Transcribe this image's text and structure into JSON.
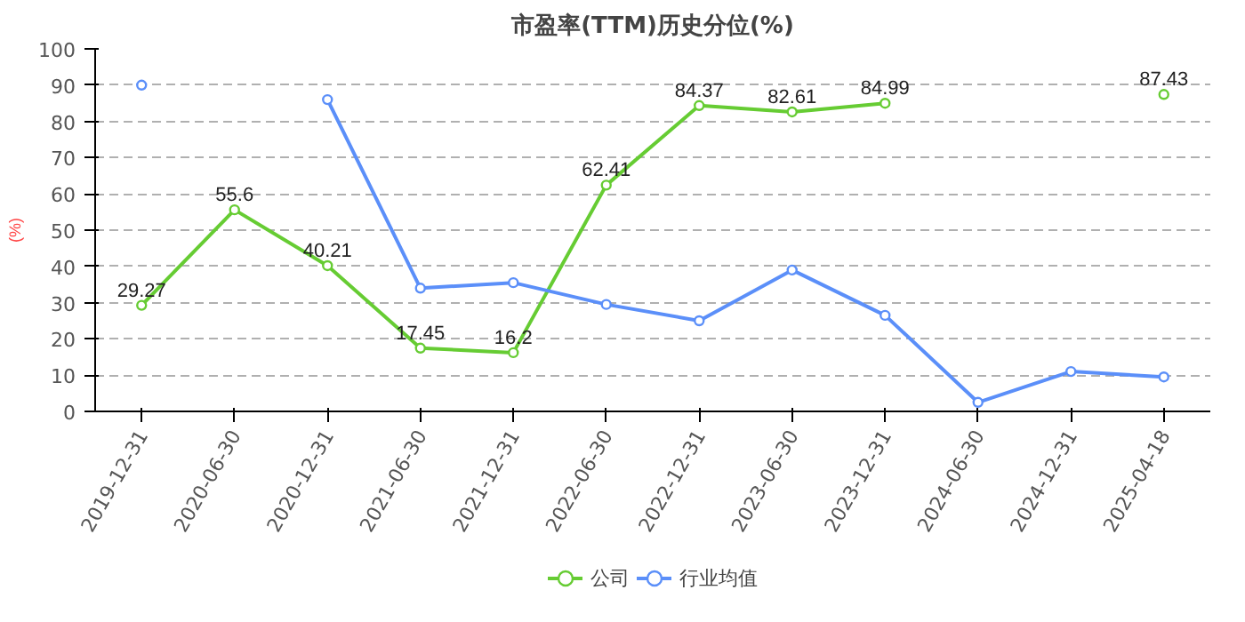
{
  "chart_data": {
    "type": "line",
    "title": "市盈率(TTM)历史分位(%)",
    "ylabel": "(%)",
    "categories": [
      "2019-12-31",
      "2020-06-30",
      "2020-12-31",
      "2021-06-30",
      "2021-12-31",
      "2022-06-30",
      "2022-12-31",
      "2023-06-30",
      "2023-12-31",
      "2024-06-30",
      "2024-12-31",
      "2025-04-18"
    ],
    "series": [
      {
        "name": "公司",
        "color": "#66cc33",
        "values": [
          29.27,
          55.6,
          40.21,
          17.45,
          16.2,
          62.41,
          84.37,
          82.61,
          84.99,
          null,
          null,
          87.43
        ],
        "value_labels": [
          "29.27",
          "55.6",
          "40.21",
          "17.45",
          "16.2",
          "62.41",
          "84.37",
          "82.61",
          "84.99",
          null,
          null,
          "87.43"
        ]
      },
      {
        "name": "行业均值",
        "color": "#5b8ff9",
        "values": [
          90,
          null,
          86,
          34,
          35.5,
          29.5,
          25,
          39,
          26.5,
          2.5,
          11,
          9.5
        ]
      }
    ],
    "ylim": [
      0,
      100
    ],
    "yticks": [
      0,
      10,
      20,
      30,
      40,
      50,
      60,
      70,
      80,
      90,
      100
    ],
    "grid": "y",
    "legend": "bottom",
    "marker": "circle",
    "line_style": "solid"
  }
}
